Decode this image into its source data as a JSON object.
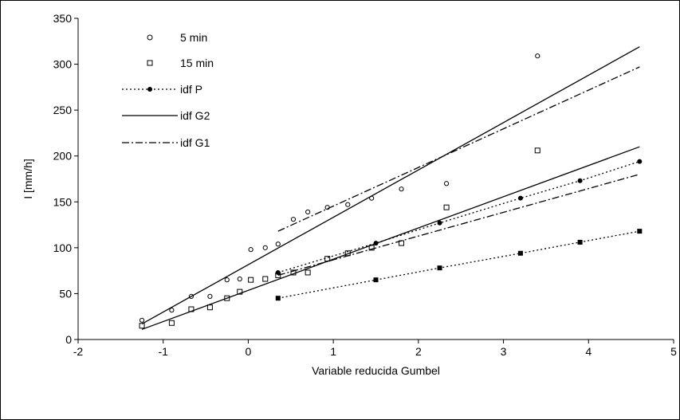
{
  "chart_data": {
    "type": "line",
    "title": "",
    "xlabel": "Variable reducida Gumbel",
    "ylabel": "I [mm/h]",
    "xlim": [
      -2,
      5
    ],
    "ylim": [
      0,
      350
    ],
    "x_ticks": [
      "-2",
      "-1",
      "0",
      "1",
      "2",
      "3",
      "4",
      "5"
    ],
    "y_ticks": [
      "0",
      "50",
      "100",
      "150",
      "200",
      "250",
      "300",
      "350"
    ],
    "grid": false,
    "legend_position": "top-left",
    "legend": [
      "5 min",
      "15 min",
      "idf P",
      "idf G2",
      "idf G1"
    ],
    "series": [
      {
        "name": "5 min",
        "style": "scatter-open-circle",
        "points": [
          [
            -1.25,
            21
          ],
          [
            -0.9,
            32
          ],
          [
            -0.67,
            47
          ],
          [
            -0.45,
            47
          ],
          [
            -0.25,
            65
          ],
          [
            -0.1,
            66
          ],
          [
            0.03,
            98
          ],
          [
            0.2,
            100
          ],
          [
            0.35,
            104
          ],
          [
            0.53,
            131
          ],
          [
            0.7,
            139
          ],
          [
            0.93,
            144
          ],
          [
            1.17,
            147
          ],
          [
            1.45,
            154
          ],
          [
            1.8,
            164
          ],
          [
            2.33,
            170
          ],
          [
            3.4,
            309
          ]
        ]
      },
      {
        "name": "15 min",
        "style": "scatter-open-square",
        "points": [
          [
            -1.25,
            15
          ],
          [
            -0.9,
            18
          ],
          [
            -0.67,
            33
          ],
          [
            -0.45,
            35
          ],
          [
            -0.25,
            45
          ],
          [
            -0.1,
            52
          ],
          [
            0.03,
            65
          ],
          [
            0.2,
            66
          ],
          [
            0.35,
            70
          ],
          [
            0.53,
            73
          ],
          [
            0.7,
            73
          ],
          [
            0.93,
            88
          ],
          [
            1.17,
            94
          ],
          [
            1.45,
            100
          ],
          [
            1.8,
            105
          ],
          [
            2.33,
            144
          ],
          [
            3.4,
            206
          ]
        ]
      },
      {
        "name": "idf P",
        "style": "dotted-filled-circle",
        "points": [
          [
            0.35,
            73
          ],
          [
            1.5,
            105
          ],
          [
            2.25,
            127
          ],
          [
            3.2,
            154
          ],
          [
            3.9,
            173
          ],
          [
            4.6,
            194
          ]
        ]
      },
      {
        "name": "idf P",
        "style": "dotted-filled-square",
        "points": [
          [
            0.35,
            45
          ],
          [
            1.5,
            65
          ],
          [
            2.25,
            78
          ],
          [
            3.2,
            94
          ],
          [
            3.9,
            106
          ],
          [
            4.6,
            118
          ]
        ]
      },
      {
        "name": "idf G2",
        "style": "solid",
        "points": [
          [
            -1.25,
            17
          ],
          [
            4.6,
            319
          ]
        ]
      },
      {
        "name": "idf G2",
        "style": "solid",
        "points": [
          [
            -1.25,
            11
          ],
          [
            4.6,
            210
          ]
        ]
      },
      {
        "name": "idf G1",
        "style": "dash-dot",
        "points": [
          [
            0.35,
            118
          ],
          [
            4.6,
            297
          ]
        ]
      },
      {
        "name": "idf G1",
        "style": "dash-dot",
        "points": [
          [
            0.35,
            70
          ],
          [
            4.6,
            180
          ]
        ]
      }
    ]
  }
}
